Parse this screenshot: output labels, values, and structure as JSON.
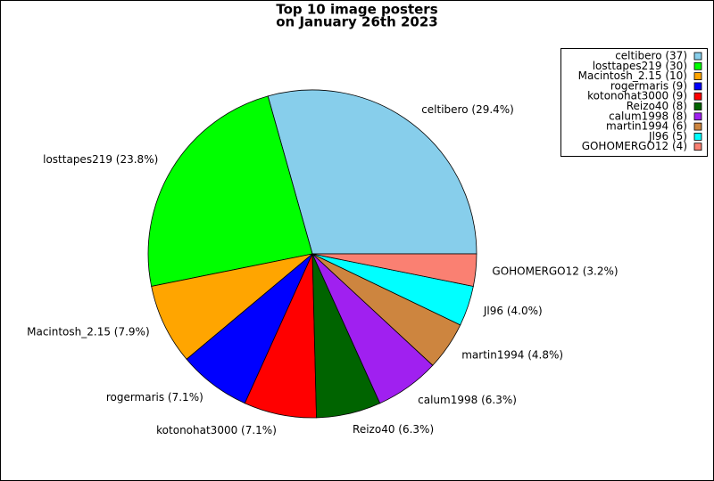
{
  "chart_data": {
    "type": "pie",
    "title": [
      "Top 10 image posters",
      "on January 26th 2023"
    ],
    "categories": [
      "celtibero",
      "losttapes219",
      "Macintosh_2.15",
      "rogermaris",
      "kotonohat3000",
      "Reizo40",
      "calum1998",
      "martin1994",
      "Jl96",
      "GOHOMERGO12"
    ],
    "values": [
      37,
      30,
      10,
      9,
      9,
      8,
      8,
      6,
      5,
      4
    ],
    "slice_labels": [
      "celtibero (29.4%)",
      "losttapes219 (23.8%)",
      "Macintosh_2.15 (7.9%)",
      "rogermaris (7.1%)",
      "kotonohat3000 (7.1%)",
      "Reizo40 (6.3%)",
      "calum1998 (6.3%)",
      "martin1994 (4.8%)",
      "Jl96 (4.0%)",
      "GOHOMERGO12 (3.2%)"
    ],
    "legend_labels": [
      "celtibero (37)",
      "losttapes219 (30)",
      "Macintosh_2.15 (10)",
      "rogermaris (9)",
      "kotonohat3000 (9)",
      "Reizo40 (8)",
      "calum1998 (8)",
      "martin1994 (6)",
      "Jl96 (5)",
      "GOHOMERGO12 (4)"
    ],
    "colors": [
      "#87ceeb",
      "#00ff00",
      "#ffa500",
      "#0000ff",
      "#ff0000",
      "#006400",
      "#a020f0",
      "#cd853f",
      "#00ffff",
      "#fa8072"
    ],
    "legend": "upper right"
  }
}
